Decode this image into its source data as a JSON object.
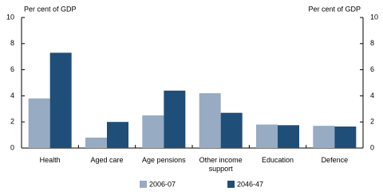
{
  "chart_data": {
    "type": "bar",
    "ylabel": "Per cent of GDP",
    "y2label": "Per cent of GDP",
    "categories": [
      "Health",
      "Aged care",
      "Age pensions",
      "Other income support",
      "Education",
      "Defence"
    ],
    "series": [
      {
        "name": "2006-07",
        "color": "#97abc3",
        "values": [
          3.8,
          0.8,
          2.5,
          4.2,
          1.8,
          1.7
        ]
      },
      {
        "name": "2046-47",
        "color": "#1f4e79",
        "values": [
          7.3,
          2.0,
          4.4,
          2.7,
          1.75,
          1.65
        ]
      }
    ],
    "ylim": [
      0,
      10
    ],
    "yticks": [
      0,
      2,
      4,
      6,
      8,
      10
    ],
    "y2lim": [
      0,
      10
    ],
    "y2ticks": [
      0,
      2,
      4,
      6,
      8,
      10
    ],
    "grid": false
  }
}
